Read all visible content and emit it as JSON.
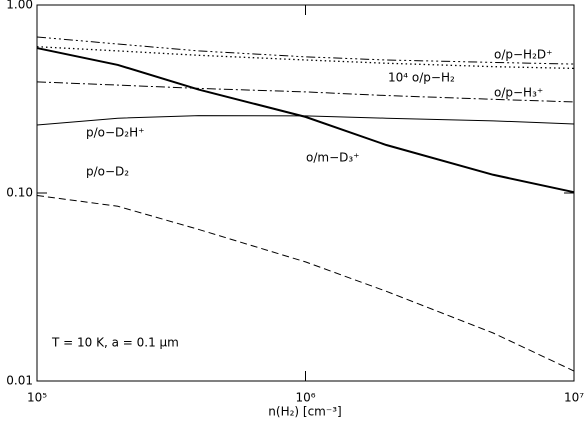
{
  "chart_data": {
    "type": "line",
    "x_label": "n(H₂) [cm⁻³]",
    "annotation": "T = 10 K, a = 0.1 μm",
    "x": [
      100000,
      200000,
      400000,
      1000000,
      2000000,
      5000000,
      10000000
    ],
    "xscale": "log",
    "yscale": "log",
    "xlim": [
      100000,
      10000000
    ],
    "xticks": [
      {
        "value": 100000,
        "label": "10⁵"
      },
      {
        "value": 1000000,
        "label": "10⁶"
      },
      {
        "value": 10000000,
        "label": "10⁷"
      }
    ],
    "ylim": [
      0.01,
      1
    ],
    "yticks": [
      {
        "value": 0.01,
        "label": "0.01"
      },
      {
        "value": 0.1,
        "label": "0.10"
      },
      {
        "value": 1,
        "label": "1.00"
      }
    ],
    "series": [
      {
        "name": "o/p−H₂D⁺",
        "color": "#000000",
        "style": "dash-dot-dot-dot",
        "linewidth": 1,
        "values": [
          0.676,
          0.62,
          0.57,
          0.53,
          0.51,
          0.495,
          0.485
        ]
      },
      {
        "name": "10⁴ o/p−H₂",
        "color": "#000000",
        "style": "dotted",
        "linewidth": 1.3,
        "values": [
          0.6,
          0.57,
          0.54,
          0.51,
          0.49,
          0.47,
          0.46
        ]
      },
      {
        "name": "o/p−H₃⁺",
        "color": "#000000",
        "style": "dash-dot",
        "linewidth": 1,
        "values": [
          0.39,
          0.375,
          0.36,
          0.345,
          0.33,
          0.315,
          0.305
        ]
      },
      {
        "name": "p/o−D₂H⁺",
        "color": "#000000",
        "style": "solid",
        "linewidth": 1,
        "values": [
          0.23,
          0.25,
          0.258,
          0.257,
          0.25,
          0.242,
          0.233
        ]
      },
      {
        "name": "o/m−D₃⁺",
        "color": "#000000",
        "style": "solid",
        "linewidth": 2,
        "values": [
          0.59,
          0.48,
          0.355,
          0.254,
          0.18,
          0.125,
          0.101
        ]
      },
      {
        "name": "p/o−D₂",
        "color": "#000000",
        "style": "dashed",
        "linewidth": 1,
        "values": [
          0.097,
          0.085,
          0.064,
          0.043,
          0.03,
          0.018,
          0.0113
        ]
      }
    ]
  }
}
